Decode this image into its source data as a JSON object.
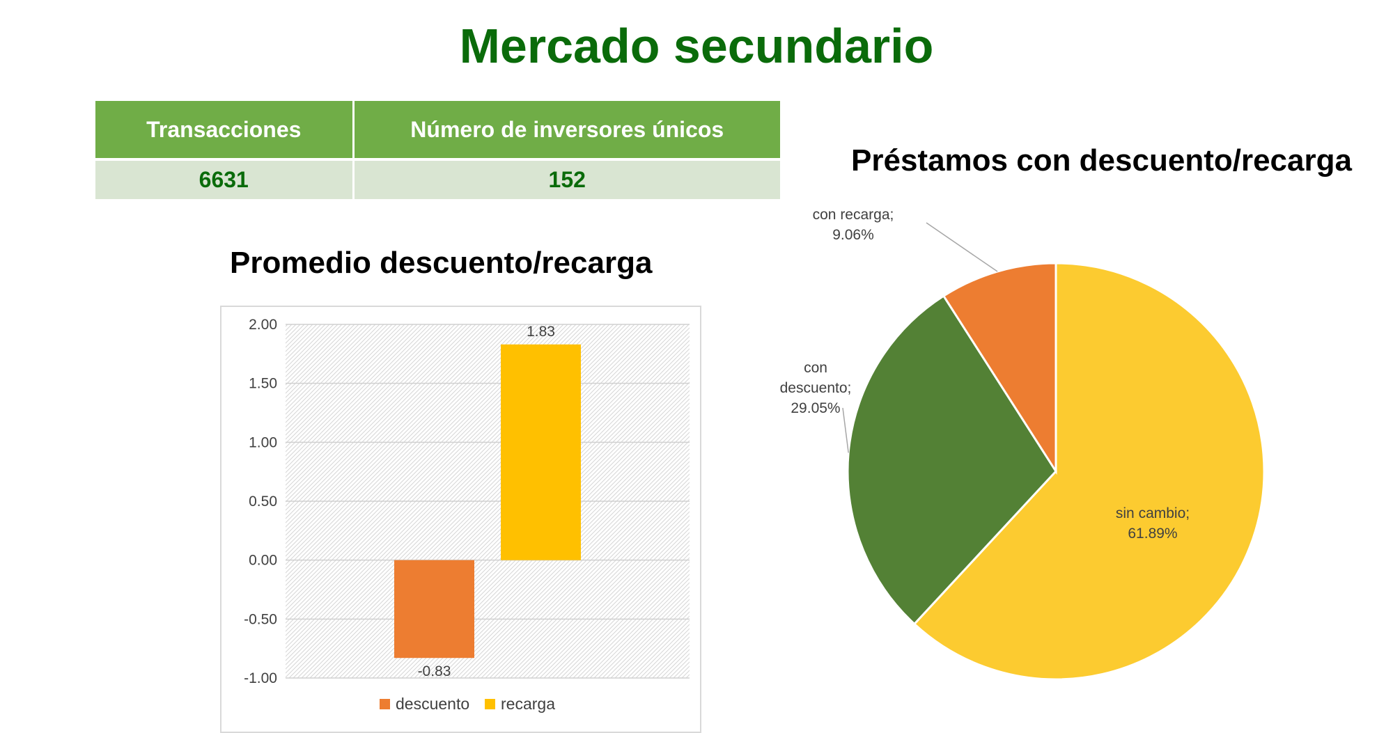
{
  "page": {
    "title": "Mercado secundario"
  },
  "stats_table": {
    "headers": [
      "Transacciones",
      "Número de inversores únicos"
    ],
    "values": [
      "6631",
      "152"
    ]
  },
  "chart_data": [
    {
      "type": "bar",
      "title": "Promedio descuento/recarga",
      "xlabel": "",
      "ylabel": "",
      "ylim": [
        -1.0,
        2.0
      ],
      "yticks": [
        "2.00",
        "1.50",
        "1.00",
        "0.50",
        "0.00",
        "-0.50",
        "-1.00"
      ],
      "grid": true,
      "legend": "bottom",
      "series": [
        {
          "name": "descuento",
          "value": -0.83,
          "label": "-0.83",
          "color": "#ed7d31"
        },
        {
          "name": "recarga",
          "value": 1.83,
          "label": "1.83",
          "color": "#ffc000"
        }
      ]
    },
    {
      "type": "pie",
      "title": "Préstamos con descuento/recarga",
      "slices": [
        {
          "name": "sin cambio",
          "value": 61.89,
          "label_lines": [
            "sin cambio;",
            "61.89%"
          ],
          "color": "#fccb30"
        },
        {
          "name": "con descuento",
          "value": 29.05,
          "label_lines": [
            "con",
            "descuento;",
            "29.05%"
          ],
          "color": "#538135"
        },
        {
          "name": "con recarga",
          "value": 9.06,
          "label_lines": [
            "con recarga;",
            "9.06%"
          ],
          "color": "#ed7d31"
        }
      ]
    }
  ]
}
